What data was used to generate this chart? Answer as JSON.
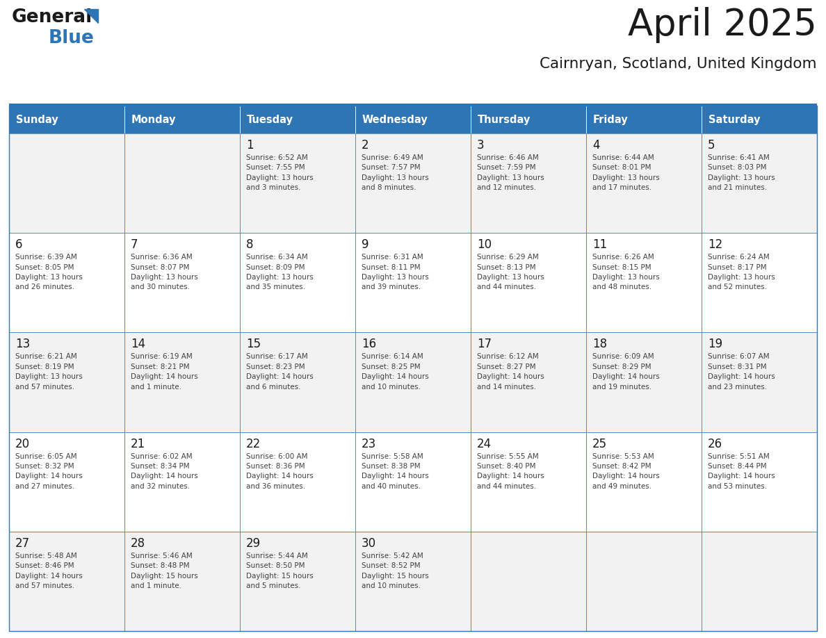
{
  "title": "April 2025",
  "subtitle": "Cairnryan, Scotland, United Kingdom",
  "header_bg": "#2E75B6",
  "header_text_color": "#FFFFFF",
  "day_names": [
    "Sunday",
    "Monday",
    "Tuesday",
    "Wednesday",
    "Thursday",
    "Friday",
    "Saturday"
  ],
  "row_bg_light": "#F2F2F2",
  "row_bg_white": "#FFFFFF",
  "cell_border_color": "#2E75B6",
  "day_num_color": "#1a1a1a",
  "text_color": "#404040",
  "logo_black": "#1a1a1a",
  "logo_blue": "#2E75B6",
  "calendar": [
    [
      {
        "day": "",
        "info": ""
      },
      {
        "day": "",
        "info": ""
      },
      {
        "day": "1",
        "info": "Sunrise: 6:52 AM\nSunset: 7:55 PM\nDaylight: 13 hours\nand 3 minutes."
      },
      {
        "day": "2",
        "info": "Sunrise: 6:49 AM\nSunset: 7:57 PM\nDaylight: 13 hours\nand 8 minutes."
      },
      {
        "day": "3",
        "info": "Sunrise: 6:46 AM\nSunset: 7:59 PM\nDaylight: 13 hours\nand 12 minutes."
      },
      {
        "day": "4",
        "info": "Sunrise: 6:44 AM\nSunset: 8:01 PM\nDaylight: 13 hours\nand 17 minutes."
      },
      {
        "day": "5",
        "info": "Sunrise: 6:41 AM\nSunset: 8:03 PM\nDaylight: 13 hours\nand 21 minutes."
      }
    ],
    [
      {
        "day": "6",
        "info": "Sunrise: 6:39 AM\nSunset: 8:05 PM\nDaylight: 13 hours\nand 26 minutes."
      },
      {
        "day": "7",
        "info": "Sunrise: 6:36 AM\nSunset: 8:07 PM\nDaylight: 13 hours\nand 30 minutes."
      },
      {
        "day": "8",
        "info": "Sunrise: 6:34 AM\nSunset: 8:09 PM\nDaylight: 13 hours\nand 35 minutes."
      },
      {
        "day": "9",
        "info": "Sunrise: 6:31 AM\nSunset: 8:11 PM\nDaylight: 13 hours\nand 39 minutes."
      },
      {
        "day": "10",
        "info": "Sunrise: 6:29 AM\nSunset: 8:13 PM\nDaylight: 13 hours\nand 44 minutes."
      },
      {
        "day": "11",
        "info": "Sunrise: 6:26 AM\nSunset: 8:15 PM\nDaylight: 13 hours\nand 48 minutes."
      },
      {
        "day": "12",
        "info": "Sunrise: 6:24 AM\nSunset: 8:17 PM\nDaylight: 13 hours\nand 52 minutes."
      }
    ],
    [
      {
        "day": "13",
        "info": "Sunrise: 6:21 AM\nSunset: 8:19 PM\nDaylight: 13 hours\nand 57 minutes."
      },
      {
        "day": "14",
        "info": "Sunrise: 6:19 AM\nSunset: 8:21 PM\nDaylight: 14 hours\nand 1 minute."
      },
      {
        "day": "15",
        "info": "Sunrise: 6:17 AM\nSunset: 8:23 PM\nDaylight: 14 hours\nand 6 minutes."
      },
      {
        "day": "16",
        "info": "Sunrise: 6:14 AM\nSunset: 8:25 PM\nDaylight: 14 hours\nand 10 minutes."
      },
      {
        "day": "17",
        "info": "Sunrise: 6:12 AM\nSunset: 8:27 PM\nDaylight: 14 hours\nand 14 minutes."
      },
      {
        "day": "18",
        "info": "Sunrise: 6:09 AM\nSunset: 8:29 PM\nDaylight: 14 hours\nand 19 minutes."
      },
      {
        "day": "19",
        "info": "Sunrise: 6:07 AM\nSunset: 8:31 PM\nDaylight: 14 hours\nand 23 minutes."
      }
    ],
    [
      {
        "day": "20",
        "info": "Sunrise: 6:05 AM\nSunset: 8:32 PM\nDaylight: 14 hours\nand 27 minutes."
      },
      {
        "day": "21",
        "info": "Sunrise: 6:02 AM\nSunset: 8:34 PM\nDaylight: 14 hours\nand 32 minutes."
      },
      {
        "day": "22",
        "info": "Sunrise: 6:00 AM\nSunset: 8:36 PM\nDaylight: 14 hours\nand 36 minutes."
      },
      {
        "day": "23",
        "info": "Sunrise: 5:58 AM\nSunset: 8:38 PM\nDaylight: 14 hours\nand 40 minutes."
      },
      {
        "day": "24",
        "info": "Sunrise: 5:55 AM\nSunset: 8:40 PM\nDaylight: 14 hours\nand 44 minutes."
      },
      {
        "day": "25",
        "info": "Sunrise: 5:53 AM\nSunset: 8:42 PM\nDaylight: 14 hours\nand 49 minutes."
      },
      {
        "day": "26",
        "info": "Sunrise: 5:51 AM\nSunset: 8:44 PM\nDaylight: 14 hours\nand 53 minutes."
      }
    ],
    [
      {
        "day": "27",
        "info": "Sunrise: 5:48 AM\nSunset: 8:46 PM\nDaylight: 14 hours\nand 57 minutes."
      },
      {
        "day": "28",
        "info": "Sunrise: 5:46 AM\nSunset: 8:48 PM\nDaylight: 15 hours\nand 1 minute."
      },
      {
        "day": "29",
        "info": "Sunrise: 5:44 AM\nSunset: 8:50 PM\nDaylight: 15 hours\nand 5 minutes."
      },
      {
        "day": "30",
        "info": "Sunrise: 5:42 AM\nSunset: 8:52 PM\nDaylight: 15 hours\nand 10 minutes."
      },
      {
        "day": "",
        "info": ""
      },
      {
        "day": "",
        "info": ""
      },
      {
        "day": "",
        "info": ""
      }
    ]
  ]
}
